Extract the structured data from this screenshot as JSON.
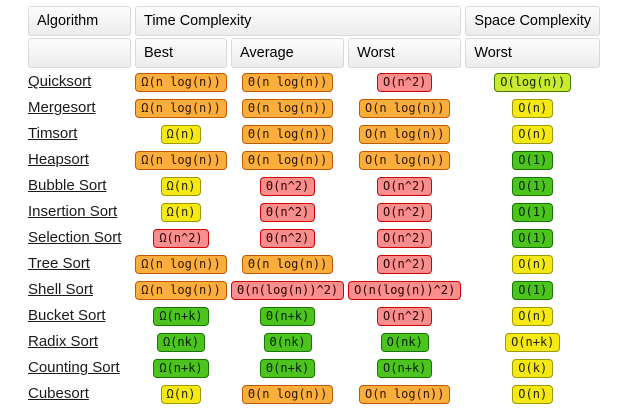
{
  "header": {
    "algorithm": "Algorithm",
    "time_complexity": "Time Complexity",
    "space_complexity": "Space Complexity",
    "sub": {
      "best": "Best",
      "average": "Average",
      "worst": "Worst",
      "space_worst": "Worst"
    }
  },
  "palette": {
    "orange": {
      "bg": "#FBAE3C",
      "border": "#BF5A00",
      "text": "#2e1600"
    },
    "red": {
      "bg": "#F98E8E",
      "border": "#D40000",
      "text": "#2e0000"
    },
    "yellow": {
      "bg": "#F6E812",
      "border": "#9C9B00",
      "text": "#222200"
    },
    "green": {
      "bg": "#4DC41D",
      "border": "#157500",
      "text": "#002200"
    },
    "yellowgreen": {
      "bg": "#CBEA2F",
      "border": "#417B00",
      "text": "#112200"
    }
  },
  "rows": [
    {
      "name": "Quicksort",
      "best": {
        "text": "Ω(n log(n))",
        "color": "orange"
      },
      "average": {
        "text": "Θ(n log(n))",
        "color": "orange"
      },
      "worst": {
        "text": "O(n^2)",
        "color": "red"
      },
      "space_worst": {
        "text": "O(log(n))",
        "color": "yellowgreen"
      }
    },
    {
      "name": "Mergesort",
      "best": {
        "text": "Ω(n log(n))",
        "color": "orange"
      },
      "average": {
        "text": "Θ(n log(n))",
        "color": "orange"
      },
      "worst": {
        "text": "O(n log(n))",
        "color": "orange"
      },
      "space_worst": {
        "text": "O(n)",
        "color": "yellow"
      }
    },
    {
      "name": "Timsort",
      "best": {
        "text": "Ω(n)",
        "color": "yellow"
      },
      "average": {
        "text": "Θ(n log(n))",
        "color": "orange"
      },
      "worst": {
        "text": "O(n log(n))",
        "color": "orange"
      },
      "space_worst": {
        "text": "O(n)",
        "color": "yellow"
      }
    },
    {
      "name": "Heapsort",
      "best": {
        "text": "Ω(n log(n))",
        "color": "orange"
      },
      "average": {
        "text": "Θ(n log(n))",
        "color": "orange"
      },
      "worst": {
        "text": "O(n log(n))",
        "color": "orange"
      },
      "space_worst": {
        "text": "O(1)",
        "color": "green"
      }
    },
    {
      "name": "Bubble Sort",
      "best": {
        "text": "Ω(n)",
        "color": "yellow"
      },
      "average": {
        "text": "Θ(n^2)",
        "color": "red"
      },
      "worst": {
        "text": "O(n^2)",
        "color": "red"
      },
      "space_worst": {
        "text": "O(1)",
        "color": "green"
      }
    },
    {
      "name": "Insertion Sort",
      "best": {
        "text": "Ω(n)",
        "color": "yellow"
      },
      "average": {
        "text": "Θ(n^2)",
        "color": "red"
      },
      "worst": {
        "text": "O(n^2)",
        "color": "red"
      },
      "space_worst": {
        "text": "O(1)",
        "color": "green"
      }
    },
    {
      "name": "Selection Sort",
      "best": {
        "text": "Ω(n^2)",
        "color": "red"
      },
      "average": {
        "text": "Θ(n^2)",
        "color": "red"
      },
      "worst": {
        "text": "O(n^2)",
        "color": "red"
      },
      "space_worst": {
        "text": "O(1)",
        "color": "green"
      }
    },
    {
      "name": "Tree Sort",
      "best": {
        "text": "Ω(n log(n))",
        "color": "orange"
      },
      "average": {
        "text": "Θ(n log(n))",
        "color": "orange"
      },
      "worst": {
        "text": "O(n^2)",
        "color": "red"
      },
      "space_worst": {
        "text": "O(n)",
        "color": "yellow"
      }
    },
    {
      "name": "Shell Sort",
      "best": {
        "text": "Ω(n log(n))",
        "color": "orange"
      },
      "average": {
        "text": "Θ(n(log(n))^2)",
        "color": "red"
      },
      "worst": {
        "text": "O(n(log(n))^2)",
        "color": "red"
      },
      "space_worst": {
        "text": "O(1)",
        "color": "green"
      }
    },
    {
      "name": "Bucket Sort",
      "best": {
        "text": "Ω(n+k)",
        "color": "green"
      },
      "average": {
        "text": "Θ(n+k)",
        "color": "green"
      },
      "worst": {
        "text": "O(n^2)",
        "color": "red"
      },
      "space_worst": {
        "text": "O(n)",
        "color": "yellow"
      }
    },
    {
      "name": "Radix Sort",
      "best": {
        "text": "Ω(nk)",
        "color": "green"
      },
      "average": {
        "text": "Θ(nk)",
        "color": "green"
      },
      "worst": {
        "text": "O(nk)",
        "color": "green"
      },
      "space_worst": {
        "text": "O(n+k)",
        "color": "yellow"
      }
    },
    {
      "name": "Counting Sort",
      "best": {
        "text": "Ω(n+k)",
        "color": "green"
      },
      "average": {
        "text": "Θ(n+k)",
        "color": "green"
      },
      "worst": {
        "text": "O(n+k)",
        "color": "green"
      },
      "space_worst": {
        "text": "O(k)",
        "color": "yellow"
      }
    },
    {
      "name": "Cubesort",
      "best": {
        "text": "Ω(n)",
        "color": "yellow"
      },
      "average": {
        "text": "Θ(n log(n))",
        "color": "orange"
      },
      "worst": {
        "text": "O(n log(n))",
        "color": "orange"
      },
      "space_worst": {
        "text": "O(n)",
        "color": "yellow"
      }
    }
  ]
}
